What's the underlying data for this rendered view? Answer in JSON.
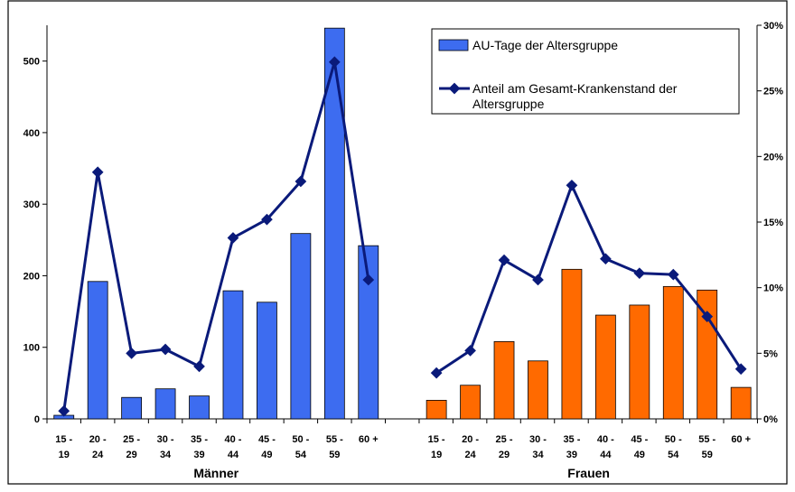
{
  "chart_data": {
    "type": "bar",
    "groups": [
      {
        "label": "Männer",
        "categories": [
          [
            "15 -",
            "19"
          ],
          [
            "20 -",
            "24"
          ],
          [
            "25 -",
            "29"
          ],
          [
            "30 -",
            "34"
          ],
          [
            "35 -",
            "39"
          ],
          [
            "40 -",
            "44"
          ],
          [
            "45 -",
            "49"
          ],
          [
            "50 -",
            "54"
          ],
          [
            "55 -",
            "59"
          ],
          [
            "60 +",
            ""
          ]
        ],
        "bars": [
          5,
          192,
          30,
          42,
          32,
          179,
          163,
          259,
          546,
          242
        ],
        "line": [
          0.6,
          18.8,
          5.0,
          5.3,
          4.0,
          13.8,
          15.2,
          18.1,
          27.2,
          10.6
        ],
        "bar_color": "#3d6cf0"
      },
      {
        "label": "Frauen",
        "categories": [
          [
            "15 -",
            "19"
          ],
          [
            "20 -",
            "24"
          ],
          [
            "25 -",
            "29"
          ],
          [
            "30 -",
            "34"
          ],
          [
            "35 -",
            "39"
          ],
          [
            "40 -",
            "44"
          ],
          [
            "45 -",
            "49"
          ],
          [
            "50 -",
            "54"
          ],
          [
            "55 -",
            "59"
          ],
          [
            "60 +",
            ""
          ]
        ],
        "bars": [
          26,
          47,
          108,
          81,
          209,
          145,
          159,
          185,
          180,
          44
        ],
        "line": [
          3.5,
          5.2,
          12.1,
          10.6,
          17.8,
          12.2,
          11.1,
          11.0,
          7.8,
          3.8
        ],
        "bar_color": "#ff6a00"
      }
    ],
    "series": [
      {
        "name": "AU-Tage der Altersgruppe",
        "type": "bar",
        "axis": "left"
      },
      {
        "name": "Anteil am Gesamt-Krankenstand der Altersgruppe",
        "type": "line",
        "axis": "right",
        "color": "#0a1a7a"
      }
    ],
    "legend_lines": [
      "AU-Tage der Altersgruppe",
      "Anteil am Gesamt-Krankenstand der",
      "Altersgruppe"
    ],
    "y_left": {
      "ylim": [
        0,
        550
      ],
      "ticks": [
        0,
        100,
        200,
        300,
        400,
        500
      ],
      "labels": [
        "0",
        "100",
        "200",
        "300",
        "400",
        "500"
      ]
    },
    "y_right": {
      "ylim": [
        0,
        30
      ],
      "ticks": [
        0,
        5,
        10,
        15,
        20,
        25,
        30
      ],
      "labels": [
        "0%",
        "5%",
        "10%",
        "15%",
        "20%",
        "25%",
        "30%"
      ]
    },
    "grid": false,
    "legend_position": "top-right"
  }
}
